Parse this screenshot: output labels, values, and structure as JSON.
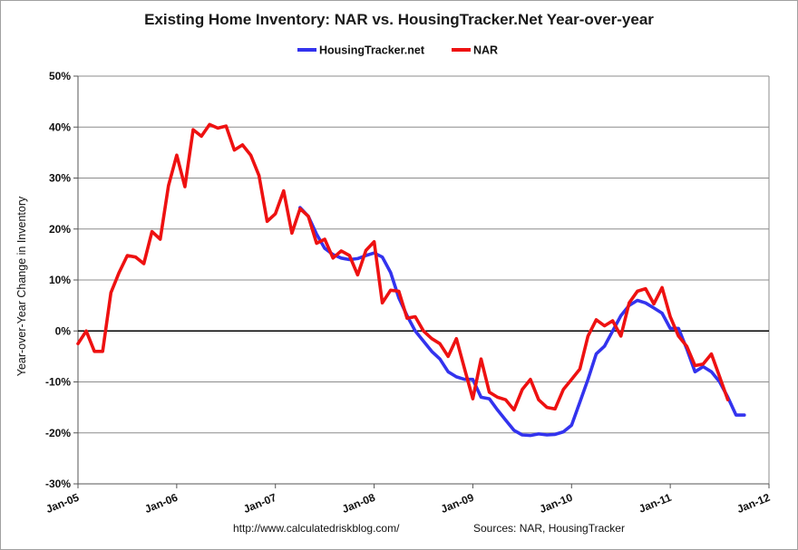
{
  "chart_data": {
    "type": "line",
    "title": "Existing Home Inventory: NAR vs. HousingTracker.Net Year-over-year",
    "xlabel": "",
    "ylabel": "Year-over-Year Change in Inventory",
    "x_tick_labels": [
      "Jan-05",
      "Jan-06",
      "Jan-07",
      "Jan-08",
      "Jan-09",
      "Jan-10",
      "Jan-11",
      "Jan-12"
    ],
    "y_tick_labels": [
      "50%",
      "40%",
      "30%",
      "20%",
      "10%",
      "0%",
      "-10%",
      "-20%",
      "-30%"
    ],
    "ylim": [
      -30,
      50
    ],
    "xlim": [
      "2005-01",
      "2012-01"
    ],
    "grid": "horizontal",
    "legend_position": "top-center",
    "zero_line": true,
    "series": [
      {
        "name": "HousingTracker.net",
        "color": "#3333ee",
        "points": [
          [
            "2007-04",
            24.2
          ],
          [
            "2007-05",
            22.5
          ],
          [
            "2007-06",
            19.0
          ],
          [
            "2007-07",
            16.2
          ],
          [
            "2007-08",
            15.0
          ],
          [
            "2007-09",
            14.3
          ],
          [
            "2007-10",
            14.0
          ],
          [
            "2007-11",
            14.2
          ],
          [
            "2007-12",
            14.8
          ],
          [
            "2008-01",
            15.3
          ],
          [
            "2008-02",
            14.5
          ],
          [
            "2008-03",
            11.5
          ],
          [
            "2008-04",
            6.5
          ],
          [
            "2008-05",
            3.0
          ],
          [
            "2008-06",
            0.0
          ],
          [
            "2008-07",
            -2.0
          ],
          [
            "2008-08",
            -4.0
          ],
          [
            "2008-09",
            -5.5
          ],
          [
            "2008-10",
            -8.0
          ],
          [
            "2008-11",
            -9.0
          ],
          [
            "2008-12",
            -9.5
          ],
          [
            "2009-01",
            -9.5
          ],
          [
            "2009-02",
            -13.0
          ],
          [
            "2009-03",
            -13.3
          ],
          [
            "2009-04",
            -15.5
          ],
          [
            "2009-05",
            -17.5
          ],
          [
            "2009-06",
            -19.5
          ],
          [
            "2009-07",
            -20.4
          ],
          [
            "2009-08",
            -20.5
          ],
          [
            "2009-09",
            -20.2
          ],
          [
            "2009-10",
            -20.4
          ],
          [
            "2009-11",
            -20.3
          ],
          [
            "2009-12",
            -19.8
          ],
          [
            "2010-01",
            -18.5
          ],
          [
            "2010-02",
            -14.0
          ],
          [
            "2010-03",
            -9.5
          ],
          [
            "2010-04",
            -4.5
          ],
          [
            "2010-05",
            -3.0
          ],
          [
            "2010-06",
            0.0
          ],
          [
            "2010-07",
            3.0
          ],
          [
            "2010-08",
            5.0
          ],
          [
            "2010-09",
            6.0
          ],
          [
            "2010-10",
            5.5
          ],
          [
            "2010-11",
            4.5
          ],
          [
            "2010-12",
            3.5
          ],
          [
            "2011-01",
            0.5
          ],
          [
            "2011-02",
            0.5
          ],
          [
            "2011-03",
            -3.5
          ],
          [
            "2011-04",
            -8.0
          ],
          [
            "2011-05",
            -7.0
          ],
          [
            "2011-06",
            -8.0
          ],
          [
            "2011-07",
            -10.0
          ],
          [
            "2011-08",
            -13.0
          ],
          [
            "2011-09",
            -16.5
          ],
          [
            "2011-10",
            -16.5
          ]
        ]
      },
      {
        "name": "NAR",
        "color": "#ee1111",
        "points": [
          [
            "2005-01",
            -2.5
          ],
          [
            "2005-02",
            0.0
          ],
          [
            "2005-03",
            -4.0
          ],
          [
            "2005-04",
            -4.0
          ],
          [
            "2005-05",
            7.5
          ],
          [
            "2005-06",
            11.5
          ],
          [
            "2005-07",
            14.8
          ],
          [
            "2005-08",
            14.5
          ],
          [
            "2005-09",
            13.2
          ],
          [
            "2005-10",
            19.5
          ],
          [
            "2005-11",
            18.0
          ],
          [
            "2005-12",
            28.5
          ],
          [
            "2006-01",
            34.5
          ],
          [
            "2006-02",
            28.3
          ],
          [
            "2006-03",
            39.5
          ],
          [
            "2006-04",
            38.2
          ],
          [
            "2006-05",
            40.5
          ],
          [
            "2006-06",
            39.8
          ],
          [
            "2006-07",
            40.2
          ],
          [
            "2006-08",
            35.5
          ],
          [
            "2006-09",
            36.5
          ],
          [
            "2006-10",
            34.5
          ],
          [
            "2006-11",
            30.5
          ],
          [
            "2006-12",
            21.5
          ],
          [
            "2007-01",
            23.0
          ],
          [
            "2007-02",
            27.5
          ],
          [
            "2007-03",
            19.2
          ],
          [
            "2007-04",
            24.0
          ],
          [
            "2007-05",
            22.5
          ],
          [
            "2007-06",
            17.2
          ],
          [
            "2007-07",
            18.0
          ],
          [
            "2007-08",
            14.3
          ],
          [
            "2007-09",
            15.7
          ],
          [
            "2007-10",
            14.8
          ],
          [
            "2007-11",
            11.0
          ],
          [
            "2007-12",
            15.8
          ],
          [
            "2008-01",
            17.5
          ],
          [
            "2008-02",
            5.5
          ],
          [
            "2008-03",
            8.0
          ],
          [
            "2008-04",
            7.8
          ],
          [
            "2008-05",
            2.5
          ],
          [
            "2008-06",
            2.8
          ],
          [
            "2008-07",
            0.0
          ],
          [
            "2008-08",
            -1.5
          ],
          [
            "2008-09",
            -2.5
          ],
          [
            "2008-10",
            -5.0
          ],
          [
            "2008-11",
            -1.5
          ],
          [
            "2008-12",
            -7.5
          ],
          [
            "2009-01",
            -13.3
          ],
          [
            "2009-02",
            -5.5
          ],
          [
            "2009-03",
            -12.0
          ],
          [
            "2009-04",
            -13.0
          ],
          [
            "2009-05",
            -13.5
          ],
          [
            "2009-06",
            -15.5
          ],
          [
            "2009-07",
            -11.5
          ],
          [
            "2009-08",
            -9.5
          ],
          [
            "2009-09",
            -13.5
          ],
          [
            "2009-10",
            -15.0
          ],
          [
            "2009-11",
            -15.3
          ],
          [
            "2009-12",
            -11.5
          ],
          [
            "2010-01",
            -9.5
          ],
          [
            "2010-02",
            -7.5
          ],
          [
            "2010-03",
            -1.0
          ],
          [
            "2010-04",
            2.2
          ],
          [
            "2010-05",
            1.0
          ],
          [
            "2010-06",
            2.0
          ],
          [
            "2010-07",
            -1.0
          ],
          [
            "2010-08",
            5.5
          ],
          [
            "2010-09",
            7.8
          ],
          [
            "2010-10",
            8.3
          ],
          [
            "2010-11",
            5.3
          ],
          [
            "2010-12",
            8.5
          ],
          [
            "2011-01",
            2.8
          ],
          [
            "2011-02",
            -1.0
          ],
          [
            "2011-03",
            -3.0
          ],
          [
            "2011-04",
            -6.8
          ],
          [
            "2011-05",
            -6.5
          ],
          [
            "2011-06",
            -4.5
          ],
          [
            "2011-07",
            -9.0
          ],
          [
            "2011-08",
            -13.5
          ]
        ]
      }
    ]
  },
  "footer": {
    "url": "http://www.calculatedriskblog.com/",
    "sources": "Sources: NAR, HousingTracker"
  }
}
